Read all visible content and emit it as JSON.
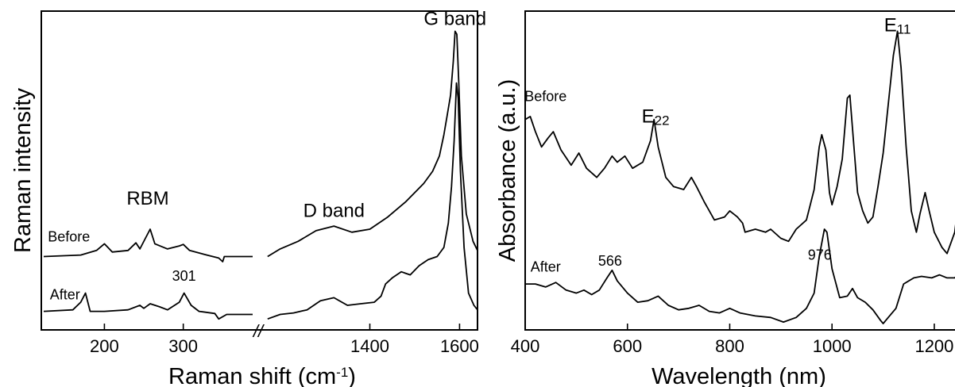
{
  "chart_data": [
    {
      "type": "line",
      "title": "",
      "xlabel": "Raman shift (cm⁻¹)",
      "ylabel": "Raman intensity",
      "x_segments": [
        {
          "xlim": [
            120,
            390
          ],
          "ticks": [
            200,
            300
          ]
        },
        {
          "xlim": [
            1160,
            1640
          ],
          "ticks": [
            1400,
            1600
          ]
        }
      ],
      "axis_break": "//",
      "ylim": [
        0,
        1
      ],
      "grid": false,
      "annotations": [
        {
          "text": "G band",
          "x": 1590,
          "y": 0.98
        },
        {
          "text": "RBM",
          "x": 255,
          "y": 0.39
        },
        {
          "text": "D band",
          "x": 1320,
          "y": 0.35
        },
        {
          "text": "301",
          "x": 301,
          "y": 0.14
        },
        {
          "text": "Before",
          "x": 155,
          "y": 0.27
        },
        {
          "text": "After",
          "x": 150,
          "y": 0.08
        }
      ],
      "series": [
        {
          "name": "Before",
          "segments": [
            [
              [
                123,
                0.22
              ],
              [
                170,
                0.225
              ],
              [
                190,
                0.24
              ],
              [
                200,
                0.262
              ],
              [
                210,
                0.235
              ],
              [
                230,
                0.24
              ],
              [
                240,
                0.265
              ],
              [
                245,
                0.245
              ],
              [
                252,
                0.28
              ],
              [
                258,
                0.31
              ],
              [
                264,
                0.262
              ],
              [
                280,
                0.245
              ],
              [
                295,
                0.255
              ],
              [
                300,
                0.26
              ],
              [
                308,
                0.24
              ],
              [
                330,
                0.225
              ],
              [
                345,
                0.215
              ],
              [
                350,
                0.203
              ],
              [
                352,
                0.22
              ],
              [
                380,
                0.22
              ],
              [
                388,
                0.22
              ]
            ],
            [
              [
                1172,
                0.22
              ],
              [
                1200,
                0.245
              ],
              [
                1240,
                0.27
              ],
              [
                1280,
                0.305
              ],
              [
                1320,
                0.32
              ],
              [
                1360,
                0.3
              ],
              [
                1400,
                0.31
              ],
              [
                1440,
                0.35
              ],
              [
                1480,
                0.4
              ],
              [
                1520,
                0.46
              ],
              [
                1540,
                0.5
              ],
              [
                1555,
                0.55
              ],
              [
                1565,
                0.62
              ],
              [
                1572,
                0.68
              ],
              [
                1580,
                0.75
              ],
              [
                1586,
                0.86
              ],
              [
                1590,
                0.96
              ],
              [
                1594,
                0.95
              ],
              [
                1598,
                0.8
              ],
              [
                1604,
                0.55
              ],
              [
                1615,
                0.36
              ],
              [
                1630,
                0.27
              ],
              [
                1640,
                0.24
              ]
            ]
          ]
        },
        {
          "name": "After",
          "segments": [
            [
              [
                123,
                0.04
              ],
              [
                160,
                0.045
              ],
              [
                170,
                0.07
              ],
              [
                176,
                0.1
              ],
              [
                182,
                0.04
              ],
              [
                200,
                0.04
              ],
              [
                230,
                0.045
              ],
              [
                245,
                0.06
              ],
              [
                250,
                0.05
              ],
              [
                258,
                0.065
              ],
              [
                270,
                0.055
              ],
              [
                280,
                0.045
              ],
              [
                295,
                0.07
              ],
              [
                301,
                0.1
              ],
              [
                310,
                0.06
              ],
              [
                320,
                0.04
              ],
              [
                340,
                0.033
              ],
              [
                345,
                0.015
              ],
              [
                355,
                0.03
              ],
              [
                380,
                0.03
              ],
              [
                388,
                0.03
              ]
            ],
            [
              [
                1172,
                0.015
              ],
              [
                1200,
                0.03
              ],
              [
                1230,
                0.035
              ],
              [
                1260,
                0.045
              ],
              [
                1290,
                0.075
              ],
              [
                1320,
                0.085
              ],
              [
                1350,
                0.06
              ],
              [
                1380,
                0.065
              ],
              [
                1410,
                0.07
              ],
              [
                1425,
                0.09
              ],
              [
                1435,
                0.13
              ],
              [
                1450,
                0.15
              ],
              [
                1470,
                0.17
              ],
              [
                1490,
                0.16
              ],
              [
                1510,
                0.19
              ],
              [
                1530,
                0.21
              ],
              [
                1550,
                0.22
              ],
              [
                1565,
                0.25
              ],
              [
                1575,
                0.33
              ],
              [
                1582,
                0.45
              ],
              [
                1588,
                0.6
              ],
              [
                1593,
                0.79
              ],
              [
                1597,
                0.74
              ],
              [
                1602,
                0.5
              ],
              [
                1610,
                0.25
              ],
              [
                1620,
                0.1
              ],
              [
                1632,
                0.06
              ],
              [
                1640,
                0.045
              ]
            ]
          ]
        }
      ]
    },
    {
      "type": "line",
      "title": "",
      "xlabel": "Wavelength (nm)",
      "ylabel": "Absorbance (a.u.)",
      "xlim": [
        400,
        1270
      ],
      "xticks": [
        400,
        600,
        800,
        1000,
        1200
      ],
      "ylim": [
        0,
        1
      ],
      "grid": false,
      "annotations": [
        {
          "text": "E11",
          "x": 1128,
          "y": 0.96
        },
        {
          "text": "E22",
          "x": 655,
          "y": 0.66
        },
        {
          "text": "Before",
          "x": 440,
          "y": 0.73
        },
        {
          "text": "After",
          "x": 440,
          "y": 0.17
        },
        {
          "text": "566",
          "x": 566,
          "y": 0.19
        },
        {
          "text": "976",
          "x": 976,
          "y": 0.21
        }
      ],
      "series": [
        {
          "name": "Before",
          "values": [
            [
              400,
              0.67
            ],
            [
              410,
              0.68
            ],
            [
              420,
              0.63
            ],
            [
              432,
              0.58
            ],
            [
              445,
              0.61
            ],
            [
              455,
              0.63
            ],
            [
              470,
              0.57
            ],
            [
              490,
              0.52
            ],
            [
              505,
              0.56
            ],
            [
              520,
              0.51
            ],
            [
              540,
              0.48
            ],
            [
              555,
              0.51
            ],
            [
              570,
              0.55
            ],
            [
              580,
              0.53
            ],
            [
              595,
              0.55
            ],
            [
              610,
              0.51
            ],
            [
              630,
              0.53
            ],
            [
              645,
              0.6
            ],
            [
              652,
              0.67
            ],
            [
              660,
              0.58
            ],
            [
              675,
              0.48
            ],
            [
              690,
              0.45
            ],
            [
              710,
              0.44
            ],
            [
              725,
              0.48
            ],
            [
              735,
              0.45
            ],
            [
              750,
              0.4
            ],
            [
              770,
              0.34
            ],
            [
              790,
              0.35
            ],
            [
              800,
              0.37
            ],
            [
              815,
              0.35
            ],
            [
              825,
              0.33
            ],
            [
              830,
              0.3
            ],
            [
              850,
              0.31
            ],
            [
              870,
              0.3
            ],
            [
              880,
              0.31
            ],
            [
              900,
              0.28
            ],
            [
              915,
              0.27
            ],
            [
              930,
              0.31
            ],
            [
              950,
              0.34
            ],
            [
              965,
              0.44
            ],
            [
              975,
              0.58
            ],
            [
              980,
              0.62
            ],
            [
              988,
              0.57
            ],
            [
              995,
              0.43
            ],
            [
              1000,
              0.39
            ],
            [
              1010,
              0.45
            ],
            [
              1020,
              0.54
            ],
            [
              1030,
              0.74
            ],
            [
              1035,
              0.75
            ],
            [
              1042,
              0.6
            ],
            [
              1050,
              0.43
            ],
            [
              1060,
              0.37
            ],
            [
              1070,
              0.33
            ],
            [
              1080,
              0.35
            ],
            [
              1090,
              0.45
            ],
            [
              1100,
              0.56
            ],
            [
              1110,
              0.72
            ],
            [
              1120,
              0.88
            ],
            [
              1128,
              0.96
            ],
            [
              1135,
              0.84
            ],
            [
              1145,
              0.58
            ],
            [
              1155,
              0.37
            ],
            [
              1165,
              0.3
            ],
            [
              1172,
              0.36
            ],
            [
              1182,
              0.43
            ],
            [
              1190,
              0.37
            ],
            [
              1200,
              0.3
            ],
            [
              1215,
              0.25
            ],
            [
              1225,
              0.23
            ],
            [
              1240,
              0.3
            ],
            [
              1252,
              0.47
            ],
            [
              1260,
              0.5
            ],
            [
              1268,
              0.47
            ]
          ]
        },
        {
          "name": "After",
          "values": [
            [
              400,
              0.13
            ],
            [
              420,
              0.13
            ],
            [
              440,
              0.12
            ],
            [
              460,
              0.135
            ],
            [
              480,
              0.11
            ],
            [
              500,
              0.1
            ],
            [
              515,
              0.11
            ],
            [
              530,
              0.095
            ],
            [
              545,
              0.11
            ],
            [
              560,
              0.15
            ],
            [
              570,
              0.175
            ],
            [
              580,
              0.14
            ],
            [
              600,
              0.1
            ],
            [
              620,
              0.07
            ],
            [
              640,
              0.075
            ],
            [
              660,
              0.09
            ],
            [
              680,
              0.06
            ],
            [
              700,
              0.045
            ],
            [
              720,
              0.05
            ],
            [
              740,
              0.06
            ],
            [
              760,
              0.04
            ],
            [
              780,
              0.035
            ],
            [
              800,
              0.05
            ],
            [
              820,
              0.035
            ],
            [
              850,
              0.025
            ],
            [
              880,
              0.02
            ],
            [
              905,
              0.005
            ],
            [
              930,
              0.02
            ],
            [
              950,
              0.05
            ],
            [
              965,
              0.1
            ],
            [
              975,
              0.22
            ],
            [
              985,
              0.31
            ],
            [
              990,
              0.3
            ],
            [
              1000,
              0.18
            ],
            [
              1015,
              0.085
            ],
            [
              1030,
              0.09
            ],
            [
              1040,
              0.115
            ],
            [
              1050,
              0.085
            ],
            [
              1065,
              0.07
            ],
            [
              1080,
              0.045
            ],
            [
              1095,
              0.01
            ],
            [
              1100,
              0.0
            ],
            [
              1110,
              0.02
            ],
            [
              1125,
              0.05
            ],
            [
              1140,
              0.13
            ],
            [
              1160,
              0.15
            ],
            [
              1175,
              0.155
            ],
            [
              1195,
              0.15
            ],
            [
              1210,
              0.16
            ],
            [
              1225,
              0.15
            ],
            [
              1240,
              0.15
            ],
            [
              1255,
              0.18
            ],
            [
              1268,
              0.2
            ]
          ]
        }
      ]
    }
  ]
}
